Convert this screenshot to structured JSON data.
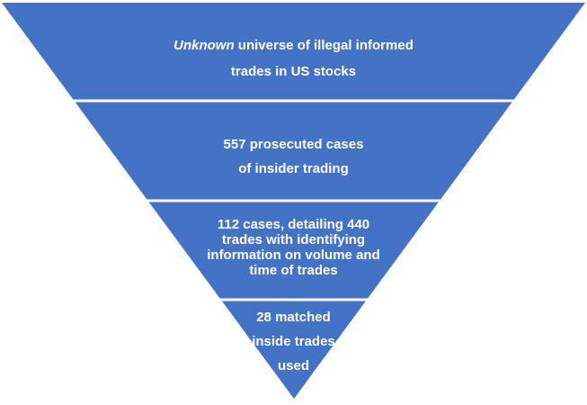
{
  "diagram": {
    "type": "inverted-funnel",
    "fill_color": "#4472C4",
    "separator_color": "#ffffff",
    "text_color": "#ffffff",
    "tiers": [
      {
        "lines": [
          {
            "italic": "Unknown",
            "rest": " universe of illegal informed"
          },
          {
            "italic": "",
            "rest": "trades in US stocks"
          }
        ]
      },
      {
        "lines": [
          {
            "italic": "",
            "rest": "557 prosecuted cases"
          },
          {
            "italic": "",
            "rest": "of insider trading"
          }
        ]
      },
      {
        "lines": [
          {
            "italic": "",
            "rest": "112 cases, detailing 440"
          },
          {
            "italic": "",
            "rest": "trades with identifying"
          },
          {
            "italic": "",
            "rest": "information on volume and"
          },
          {
            "italic": "",
            "rest": "time of trades"
          }
        ]
      },
      {
        "lines": [
          {
            "italic": "",
            "rest": "28 matched"
          },
          {
            "italic": "",
            "rest": "inside trades"
          },
          {
            "italic": "",
            "rest": "used"
          }
        ]
      }
    ]
  }
}
